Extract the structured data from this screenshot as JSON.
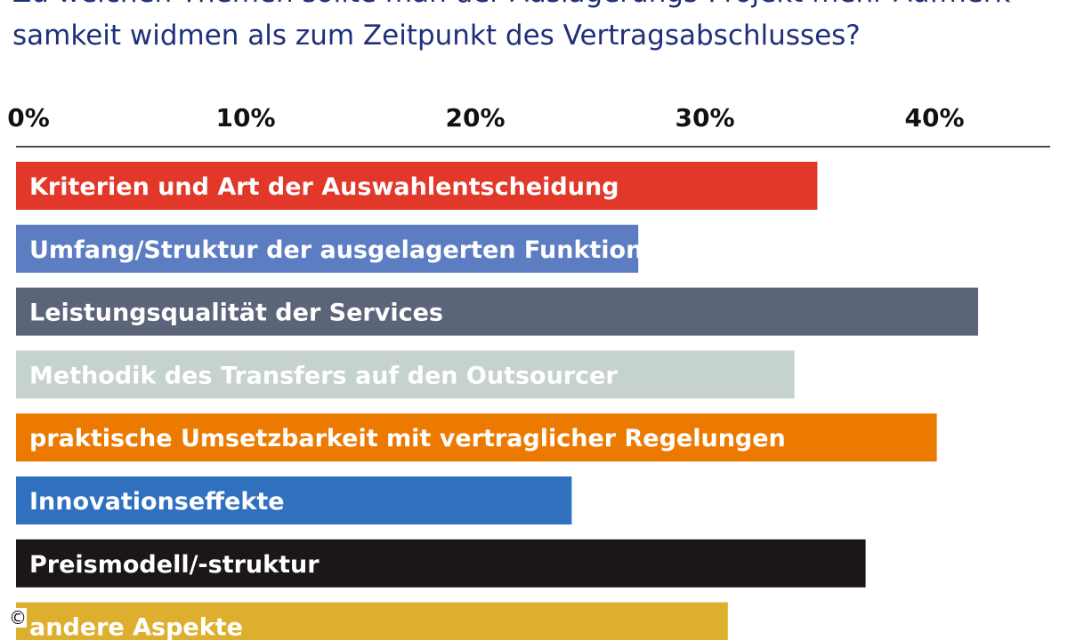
{
  "title_lines": [
    "Zu welchen Themen sollte man der Auslagerungs-Projekt mehr Aufmerk-",
    "samkeit widmen als zum Zeitpunkt des Vertragsabschlusses?"
  ],
  "copyright": "©",
  "chart_data": {
    "type": "bar",
    "orientation": "horizontal",
    "xlim": [
      0,
      45
    ],
    "x_ticks": [
      0,
      10,
      20,
      30,
      40
    ],
    "x_tick_labels": [
      "0%",
      "10%",
      "20%",
      "30%",
      "40%"
    ],
    "axis_position": "top",
    "grid": false,
    "legend": "none",
    "categories": [
      "Kriterien und Art der Auswahlentscheidung",
      "Umfang/Struktur der ausgelagerten Funktionen",
      "Leistungsqualität der Services",
      "Methodik des Transfers auf den Outsourcer",
      "praktische Umsetzbarkeit mit vertraglicher Regelungen",
      "Innovationseffekte",
      "Preismodell/-struktur",
      "andere Aspekte"
    ],
    "values": [
      34.9,
      27.1,
      41.9,
      33.9,
      40.1,
      24.2,
      37.0,
      31.0
    ],
    "colors": [
      "#e2382a",
      "#5d7dc3",
      "#5b6478",
      "#c5d3cc",
      "#ec7a00",
      "#2f70bf",
      "#1b1719",
      "#deaf2f"
    ],
    "label_color": "#ffffff"
  }
}
